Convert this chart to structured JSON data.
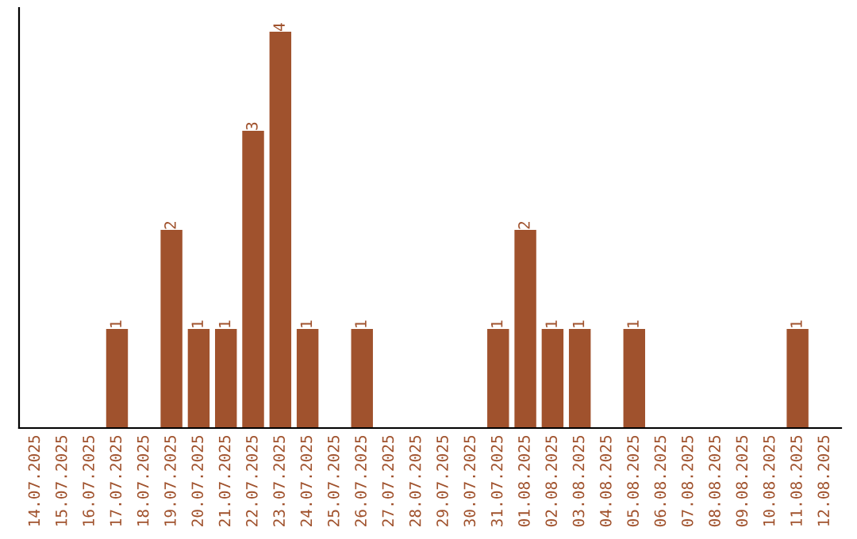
{
  "chart_data": {
    "type": "bar",
    "categories": [
      "14.07.2025",
      "15.07.2025",
      "16.07.2025",
      "17.07.2025",
      "18.07.2025",
      "19.07.2025",
      "20.07.2025",
      "21.07.2025",
      "22.07.2025",
      "23.07.2025",
      "24.07.2025",
      "25.07.2025",
      "26.07.2025",
      "27.07.2025",
      "28.07.2025",
      "29.07.2025",
      "30.07.2025",
      "31.07.2025",
      "01.08.2025",
      "02.08.2025",
      "03.08.2025",
      "04.08.2025",
      "05.08.2025",
      "06.08.2025",
      "07.08.2025",
      "08.08.2025",
      "09.08.2025",
      "10.08.2025",
      "11.08.2025",
      "12.08.2025"
    ],
    "values": [
      0,
      0,
      0,
      1,
      0,
      2,
      1,
      1,
      3,
      4,
      1,
      0,
      1,
      0,
      0,
      0,
      0,
      1,
      2,
      1,
      1,
      0,
      1,
      0,
      0,
      0,
      0,
      0,
      1,
      0
    ],
    "value_labels": [
      null,
      null,
      null,
      "1",
      null,
      "2",
      "1",
      "1",
      "3",
      "4",
      "1",
      null,
      "1",
      null,
      null,
      null,
      null,
      "1",
      "2",
      "1",
      "1",
      null,
      "1",
      null,
      null,
      null,
      null,
      null,
      "1",
      null
    ],
    "color": "#a0522d",
    "ylim": [
      0,
      4.24
    ],
    "tick_labels": "x",
    "grid": false,
    "legend": false
  }
}
